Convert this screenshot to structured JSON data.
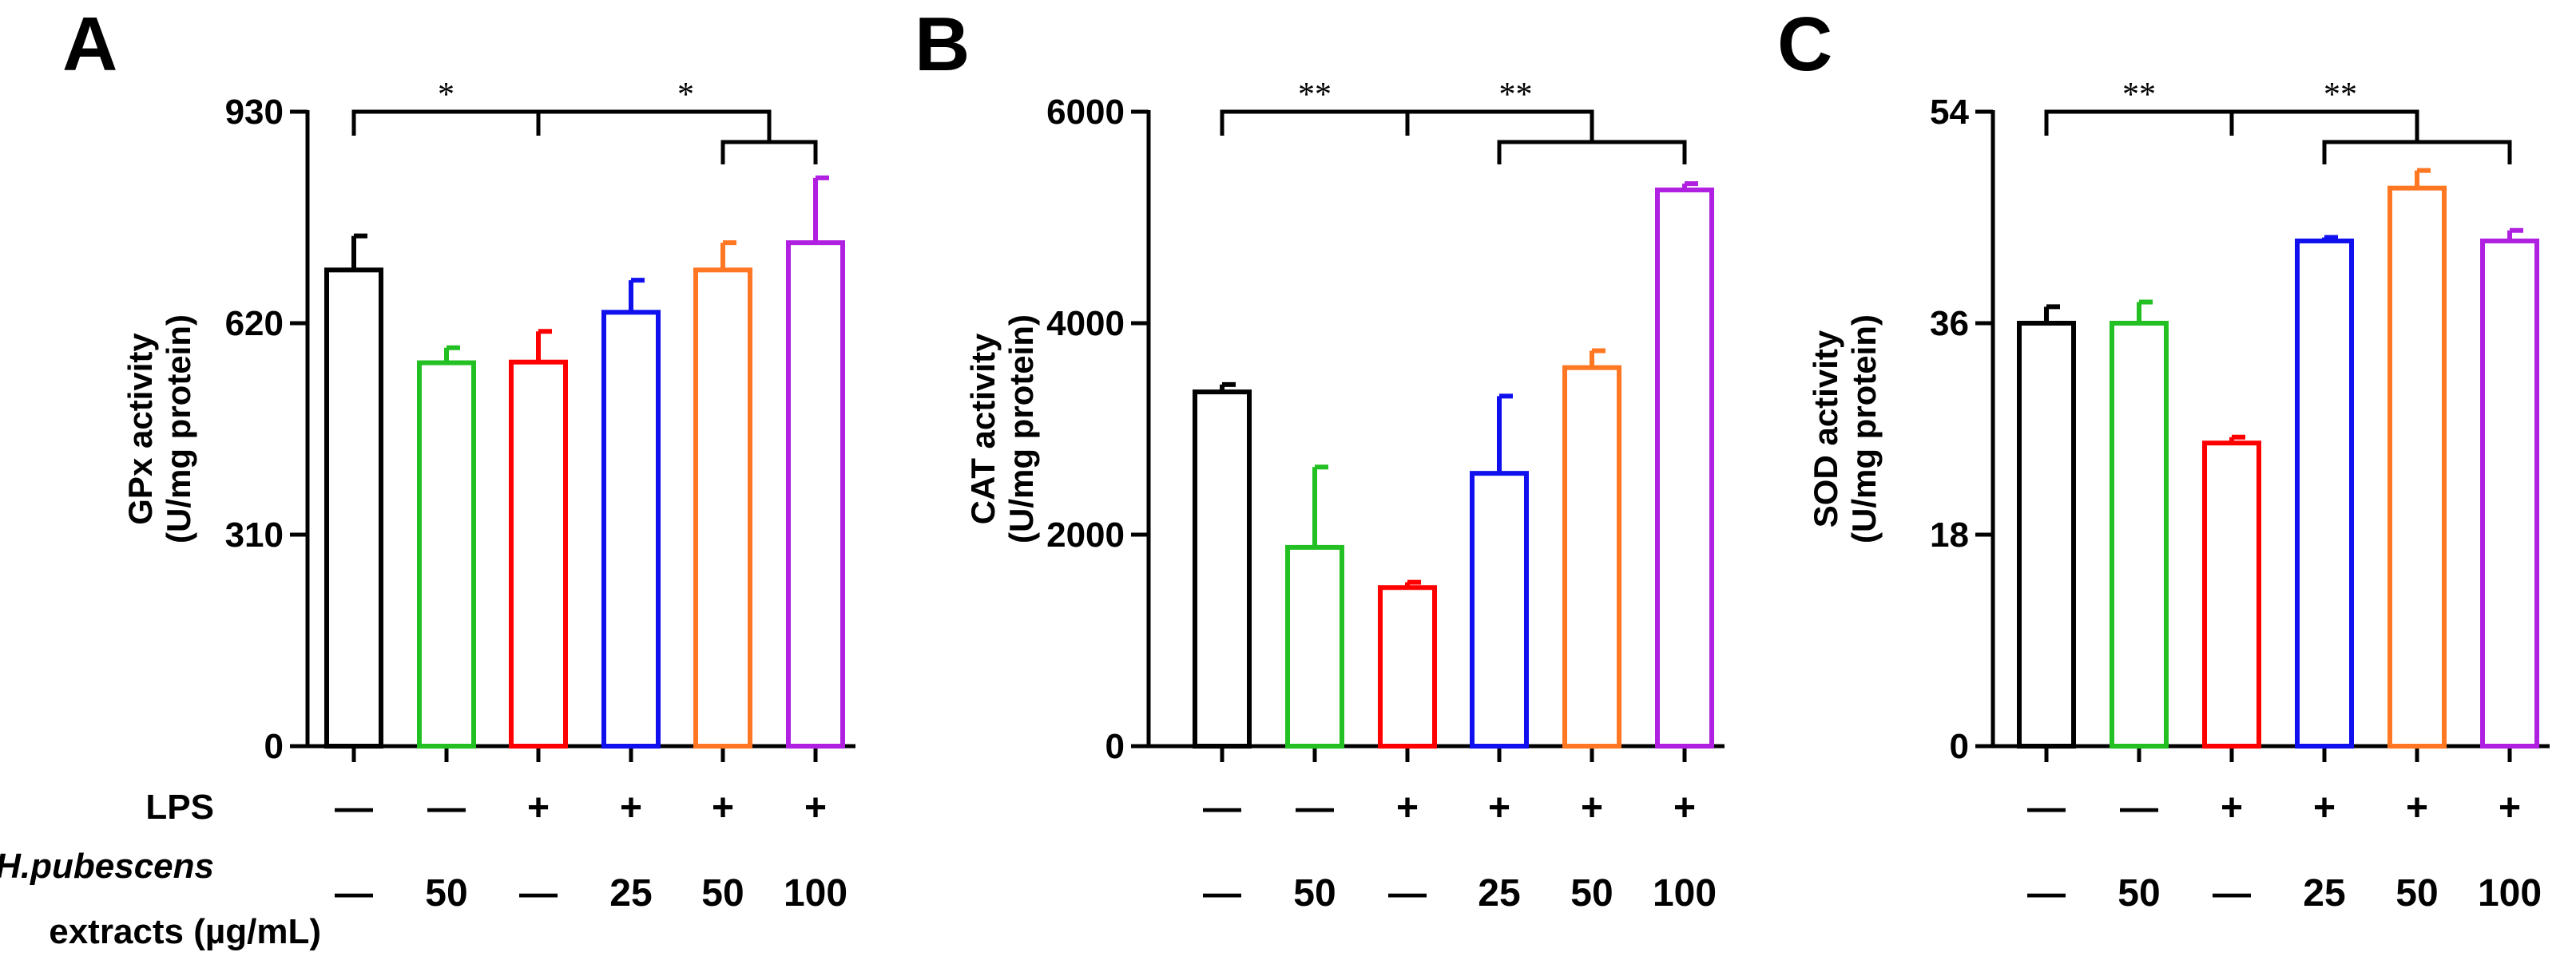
{
  "figure": {
    "row_titles": {
      "lps": "LPS",
      "extract_line1": "H.pubescens",
      "extract_line2": "extracts (µg/mL)"
    },
    "lps_signs": [
      "—",
      "—",
      "+",
      "+",
      "+",
      "+"
    ],
    "extract_doses": [
      "—",
      "50",
      "—",
      "25",
      "50",
      "100"
    ]
  },
  "chart_data": [
    {
      "type": "bar",
      "panel": "A",
      "ylabel_lines": [
        "GPx activity",
        "(U/mg protein)"
      ],
      "ylim": [
        0,
        930
      ],
      "yticks": [
        0,
        310,
        620,
        930
      ],
      "ytick_labels": [
        "0",
        "310",
        "620",
        "930"
      ],
      "categories": [
        "1",
        "2",
        "3",
        "4",
        "5",
        "6"
      ],
      "values": [
        698,
        562,
        563,
        636,
        698,
        738
      ],
      "errors": [
        50,
        22,
        45,
        47,
        40,
        95
      ],
      "colors": [
        "#000000",
        "#22c022",
        "#ff0000",
        "#1010ee",
        "#ff7722",
        "#b020e0"
      ],
      "significance": [
        {
          "label": "*",
          "from": 0,
          "to": 2
        },
        {
          "label": "*",
          "from": 2,
          "to": [
            4,
            5
          ]
        }
      ]
    },
    {
      "type": "bar",
      "panel": "B",
      "ylabel_lines": [
        "CAT activity",
        "(U/mg protein)"
      ],
      "ylim": [
        0,
        6000
      ],
      "yticks": [
        0,
        2000,
        4000,
        6000
      ],
      "ytick_labels": [
        "0",
        "2000",
        "4000",
        "6000"
      ],
      "categories": [
        "1",
        "2",
        "3",
        "4",
        "5",
        "6"
      ],
      "values": [
        3350,
        1880,
        1500,
        2580,
        3580,
        5260
      ],
      "errors": [
        70,
        760,
        50,
        730,
        160,
        60
      ],
      "colors": [
        "#000000",
        "#22c022",
        "#ff0000",
        "#1010ee",
        "#ff7722",
        "#b020e0"
      ],
      "significance": [
        {
          "label": "**",
          "from": 0,
          "to": 2
        },
        {
          "label": "**",
          "from": 2,
          "to": [
            3,
            5
          ]
        }
      ]
    },
    {
      "type": "bar",
      "panel": "C",
      "ylabel_lines": [
        "SOD activity",
        "(U/mg protein)"
      ],
      "ylim": [
        0,
        54
      ],
      "yticks": [
        0,
        18,
        36,
        54
      ],
      "ytick_labels": [
        "0",
        "18",
        "36",
        "54"
      ],
      "categories": [
        "1",
        "2",
        "3",
        "4",
        "5",
        "6"
      ],
      "values": [
        36,
        36,
        25.8,
        43,
        47.5,
        43
      ],
      "errors": [
        1.4,
        1.8,
        0.5,
        0.3,
        1.5,
        0.9
      ],
      "colors": [
        "#000000",
        "#22c022",
        "#ff0000",
        "#1010ee",
        "#ff7722",
        "#b020e0"
      ],
      "significance": [
        {
          "label": "**",
          "from": 0,
          "to": 2
        },
        {
          "label": "**",
          "from": 2,
          "to": [
            3,
            5
          ]
        }
      ]
    }
  ]
}
